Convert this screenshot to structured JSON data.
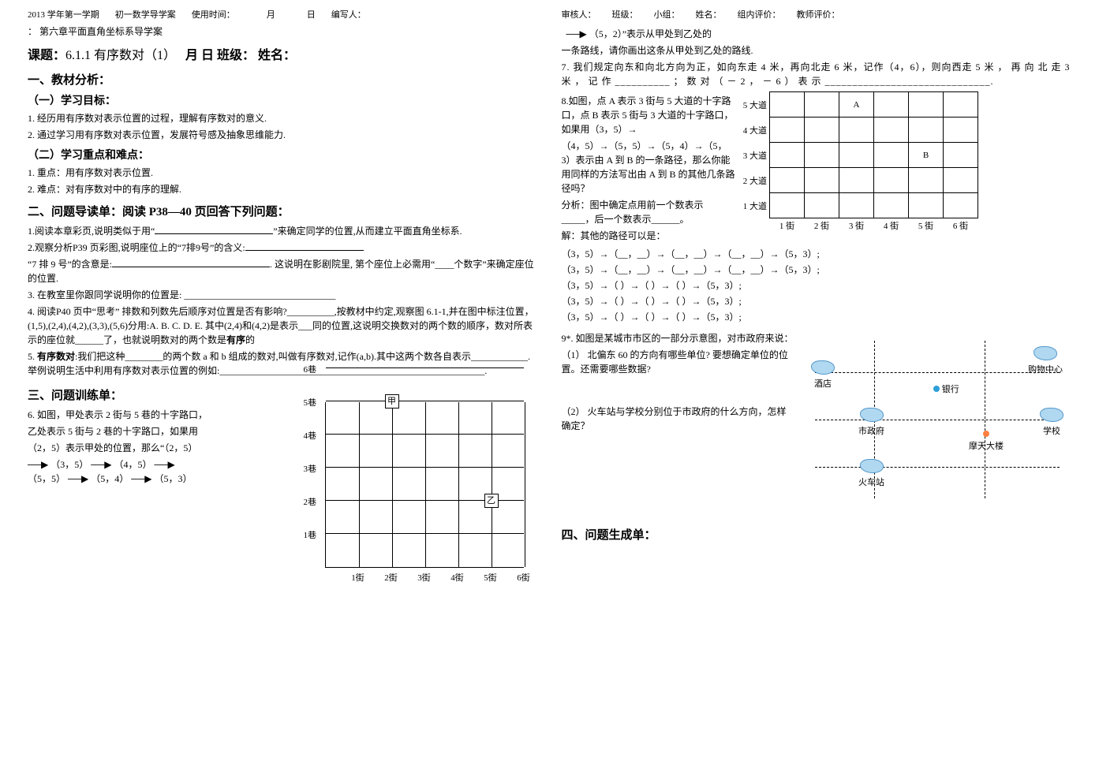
{
  "header": {
    "term": "2013 学年第一学期",
    "subject": "初一数学导学案",
    "usetime_label": "使用时间：",
    "month": "月",
    "day": "日",
    "writer_label": "编写人：",
    "reviewer_label": "审核人：",
    "class_label": "班级：",
    "group_label": "小组：",
    "name_label": "姓名：",
    "eval1_label": "组内评价：",
    "eval2_label": "教师评价："
  },
  "chapter": "：  第六章平面直角坐标系导学案",
  "title": {
    "prefix": "课题：",
    "text": "6.1.1 有序数对（1）",
    "mdyb": "月  日    班级：      姓名："
  },
  "sec1": "一、教材分析：",
  "goal_h": "（一）学习目标：",
  "goal1": "1. 经历用有序数对表示位置的过程，理解有序数对的意义.",
  "goal2": "2. 通过学习用有序数对表示位置，发展符号感及抽象思维能力.",
  "focus_h": "（二）学习重点和难点：",
  "focus1": "1. 重点：用有序数对表示位置.",
  "focus2": "2. 难点：对有序数对中的有序的理解.",
  "sec2": "二、问题导读单：阅读 P38—40 页回答下列问题：",
  "q1a": "1.阅读本章彩页,说明类似于用“",
  "q1b": "”来确定同学的位置,从而建立平面直角坐标系.",
  "q2a": "2.观察分析P39 页彩图,说明座位上的“7排9号”的含义:",
  "q2b": "“7 排 9 号”的含意是:",
  "q2c": ". 这说明在影剧院里, 第个座位上必需用“____个数字”来确定座位的位置.",
  "q3": "3. 在教室里你跟同学说明你的位置是: ________________________________",
  "q4a": "4. 阅读P40 页中“思考”  排数和列数先后顺序对位置是否有影响?__________,按教材中约定,观察图 6.1-1,并在图中标注位置，(1,5),(2,4),(4,2),(3,3),(5,6)分用:A. B. C. D. E.  其中(2,4)和(4,2)是表示___同的位置,这说明交换数对的两个数的顺序，数对所表示的座位就______了，也就说明数对的两个数是",
  "q4b": "有序",
  "q4c": "的",
  "q5a": "5. ",
  "q5b": "有序数对",
  "q5c": ":我们把这种________的两个数 a 和 b 组成的数对,叫做有序数对,记作(a,b).其中这两个数各自表示____________.举例说明生活中利用有序数对表示位置的例如:________________________________________________________.",
  "sec3": "三、问题训练单：",
  "q6": "6. 如图，甲处表示 2 街与 5 巷的十字路口，",
  "q6b": "乙处表示 5 街与 2 巷的十字路口，如果用",
  "q6c": "（2，5）表示甲处的位置，那么“（2，5）",
  "q6d": "（3，5）",
  "q6e": "（4，5）",
  "q6f": "（5，5）",
  "q6g": "（5，4）",
  "q6h": "（5，3）",
  "grid_left": {
    "x_labels": [
      "1街",
      "2街",
      "3街",
      "4街",
      "5街",
      "6街"
    ],
    "y_labels": [
      "1巷",
      "2巷",
      "3巷",
      "4巷",
      "5巷",
      "6巷"
    ],
    "markers": {
      "甲": [
        2,
        5
      ],
      "乙": [
        5,
        2
      ]
    }
  },
  "right_top": "（5，2）”表示从甲处到乙处的",
  "right_top2": "一条路线，请你画出这条从甲处到乙处的路线.",
  "q7": "7. 我们规定向东和向北方向为正，如向东走 4 米，再向北走 6 米，记作（4，6），则向西走 5 米 ， 再 向 北 走 3 米 ， 记 作 __________ ； 数 对 （ － 2 ， － 6 ） 表 示 ______________________________.",
  "q8a": "8.如图，点 A 表示 3 街与 5 大道的十字路口，点 B 表示 5 街与 3 大道的十字路口，如果用（3，5）→",
  "q8b": "（4，5）→（5，5）→（5，4）→（5，3）表示由 A 到 B 的一条路径，那么你能用同样的方法写出由 A 到 B 的其他几条路径吗？",
  "q8c": "分析：图中确定点用前一个数表示_____，后一个数表示______。",
  "q8d": "解：其他的路径可以是：",
  "paths": [
    "（3，5）→（__，__）→（__，__）→（__，__）→（5，3）;",
    "（3，5）→（__，__）→（__，__）→（__，__）→（5，3）;",
    "（3，5）→（        ）→（        ）→（        ）→（5，3）;",
    "（3，5）→（        ）→（        ）→（        ）→（5，3）;",
    "（3，5）→（        ）→（        ）→（        ）→（5，3）;"
  ],
  "rt": {
    "row_labels": [
      "5 大道",
      "4 大道",
      "3 大道",
      "2 大道",
      "1 大道"
    ],
    "col_labels": [
      "1 街",
      "2 街",
      "3 街",
      "4 街",
      "5 街",
      "6 街"
    ],
    "A": "A",
    "B": "B"
  },
  "q9a": "9*. 如图是某城市市区的一部分示意图，对市政府来说：",
  "q9b": "（1）    北偏东 60 的方向有哪些单位? 要想确定单位的位置。还需要哪些数据?",
  "q9c": "（2）    火车站与学校分别位于市政府的什么方向，怎样确定？",
  "city": {
    "hotel": "酒店",
    "mall": "购物中心",
    "bank": "银行",
    "gov": "市政府",
    "school": "学校",
    "tower": "摩天大楼",
    "station": "火车站"
  },
  "sec4": "四、问题生成单："
}
